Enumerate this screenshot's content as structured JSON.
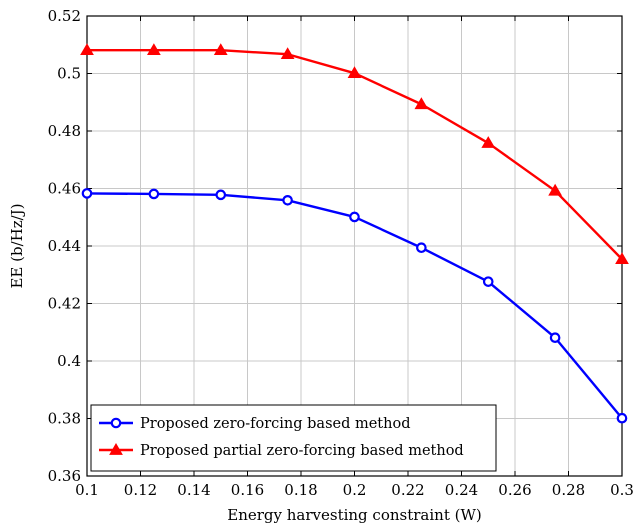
{
  "chart_data": {
    "type": "line",
    "xlabel": "Energy harvesting constraint (W)",
    "ylabel": "EE (b/Hz/J)",
    "xlim": [
      0.1,
      0.3
    ],
    "ylim": [
      0.36,
      0.52
    ],
    "grid": true,
    "legend_position": "bottom-left",
    "x_ticks": [
      "0.1",
      "0.12",
      "0.14",
      "0.16",
      "0.18",
      "0.2",
      "0.22",
      "0.24",
      "0.26",
      "0.28",
      "0.3"
    ],
    "y_ticks": [
      "0.36",
      "0.38",
      "0.4",
      "0.42",
      "0.44",
      "0.46",
      "0.48",
      "0.5",
      "0.52"
    ],
    "x": [
      0.1,
      0.125,
      0.15,
      0.175,
      0.2,
      0.225,
      0.25,
      0.275,
      0.3
    ],
    "series": [
      {
        "name": "Proposed zero-forcing based method",
        "color": "#0000ff",
        "marker": "circle",
        "values": [
          0.4583,
          0.4581,
          0.4578,
          0.4559,
          0.4501,
          0.4394,
          0.4276,
          0.4081,
          0.3801
        ]
      },
      {
        "name": "Proposed partial zero-forcing based method",
        "color": "#ff0000",
        "marker": "triangle",
        "values": [
          0.5081,
          0.5081,
          0.5081,
          0.5067,
          0.5001,
          0.4893,
          0.4758,
          0.4592,
          0.4354
        ]
      }
    ]
  }
}
